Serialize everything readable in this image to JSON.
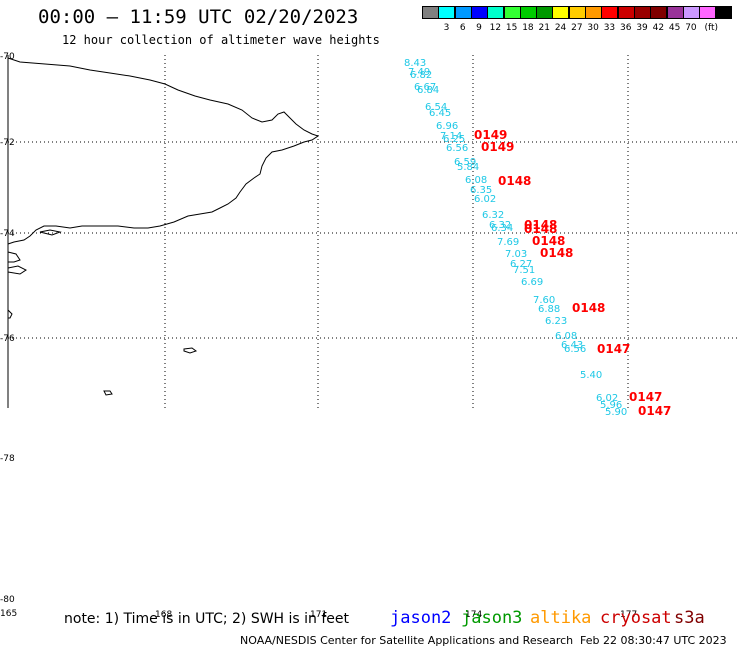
{
  "title": "00:00 – 11:59 UTC 02/20/2023",
  "subtitle": "12 hour collection of altimeter wave heights",
  "colorbar": {
    "unit_label": "(ft)",
    "colors": [
      "#808080",
      "#00ffff",
      "#0099ff",
      "#0000ff",
      "#00ffcc",
      "#33ff33",
      "#00cc00",
      "#009900",
      "#ffff00",
      "#ffcc00",
      "#ff9900",
      "#ff0000",
      "#cc0000",
      "#990000",
      "#800000",
      "#993399",
      "#cc99ff",
      "#ff66ff",
      "#000000"
    ],
    "labels": [
      "3",
      "6",
      "9",
      "12",
      "15",
      "18",
      "21",
      "24",
      "27",
      "30",
      "33",
      "36",
      "39",
      "42",
      "45",
      "70"
    ]
  },
  "axes": {
    "lat_labels": [
      "-70",
      "-72",
      "-74",
      "-76",
      "-78",
      "-80"
    ],
    "lon_labels": [
      "165",
      "168",
      "171",
      "174",
      "177"
    ]
  },
  "wave_heights": [
    "8.43",
    "7.49",
    "6.82",
    "6.67",
    "6.84",
    "6.54",
    "6.45",
    "6.96",
    "7.14",
    "6.25",
    "6.56",
    "6.59",
    "5.84",
    "6.08",
    "6.35",
    "6.02",
    "6.32",
    "6.32",
    "6.34",
    "7.69",
    "7.03",
    "6.27",
    "7.51",
    "6.69",
    "7.60",
    "6.88",
    "6.23",
    "6.08",
    "6.43",
    "6.56",
    "5.40",
    "6.02",
    "5.96",
    "5.90"
  ],
  "pass_labels": [
    "0149",
    "0149",
    "0148",
    "0148",
    "0148",
    "0148",
    "0148",
    "0148",
    "0147",
    "0147",
    "0147"
  ],
  "note": "note: 1) Time is in UTC; 2) SWH is in feet",
  "satellites": [
    {
      "name": "jason2",
      "color": "#0000ff"
    },
    {
      "name": "jason3",
      "color": "#009900"
    },
    {
      "name": "altika",
      "color": "#ff9900"
    },
    {
      "name": "cryosat",
      "color": "#cc0000"
    },
    {
      "name": "s3a",
      "color": "#800000"
    }
  ],
  "credit": "NOAA/NESDIS Center for Satellite Applications and Research",
  "timestamp": "Feb 22 08:30:47 UTC 2023"
}
